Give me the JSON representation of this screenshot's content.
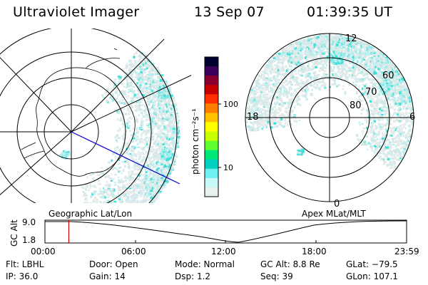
{
  "header": {
    "title": "Ultraviolet Imager",
    "date": "13 Sep 07",
    "time": "01:39:35 UT"
  },
  "colorbar": {
    "unit_label": "photon cm⁻²s⁻¹",
    "ticks": [
      "100",
      "10"
    ],
    "colors": [
      "#000030",
      "#3a005a",
      "#8a0030",
      "#c40000",
      "#ff3000",
      "#ff8000",
      "#ffc000",
      "#ffff00",
      "#c8ff00",
      "#60ff30",
      "#00e878",
      "#00d0c0",
      "#70f0f0",
      "#c8f8f8",
      "#e8f0f0"
    ]
  },
  "left_panel": {
    "caption": "Geographic Lat/Lon"
  },
  "right_panel": {
    "caption": "Apex MLat/MLT",
    "mlt_labels": [
      "12",
      "18",
      "6",
      "0"
    ],
    "lat_labels": [
      "60",
      "70",
      "80"
    ]
  },
  "timeline": {
    "axis_title": "GC Alt",
    "y_ticks": [
      "9.0",
      "1.8"
    ],
    "x_ticks": [
      "00:00",
      "06:00",
      "12:00",
      "18:00",
      "23:59"
    ],
    "current_time_fraction": 0.066
  },
  "info": {
    "filter_label": "Flt: LBHL",
    "door_label": "Door: Open",
    "mode_label": "Mode: Normal",
    "gcalt_label": "GC Alt: 8.8 Re",
    "glat_label": "GLat: −79.5",
    "ip_label": "IP: 36.0",
    "gain_label": "Gain: 14",
    "dsp_label": "Dsp:    1.2",
    "seq_label": "Seq: 39",
    "glon_label": "GLon: 107.1"
  }
}
